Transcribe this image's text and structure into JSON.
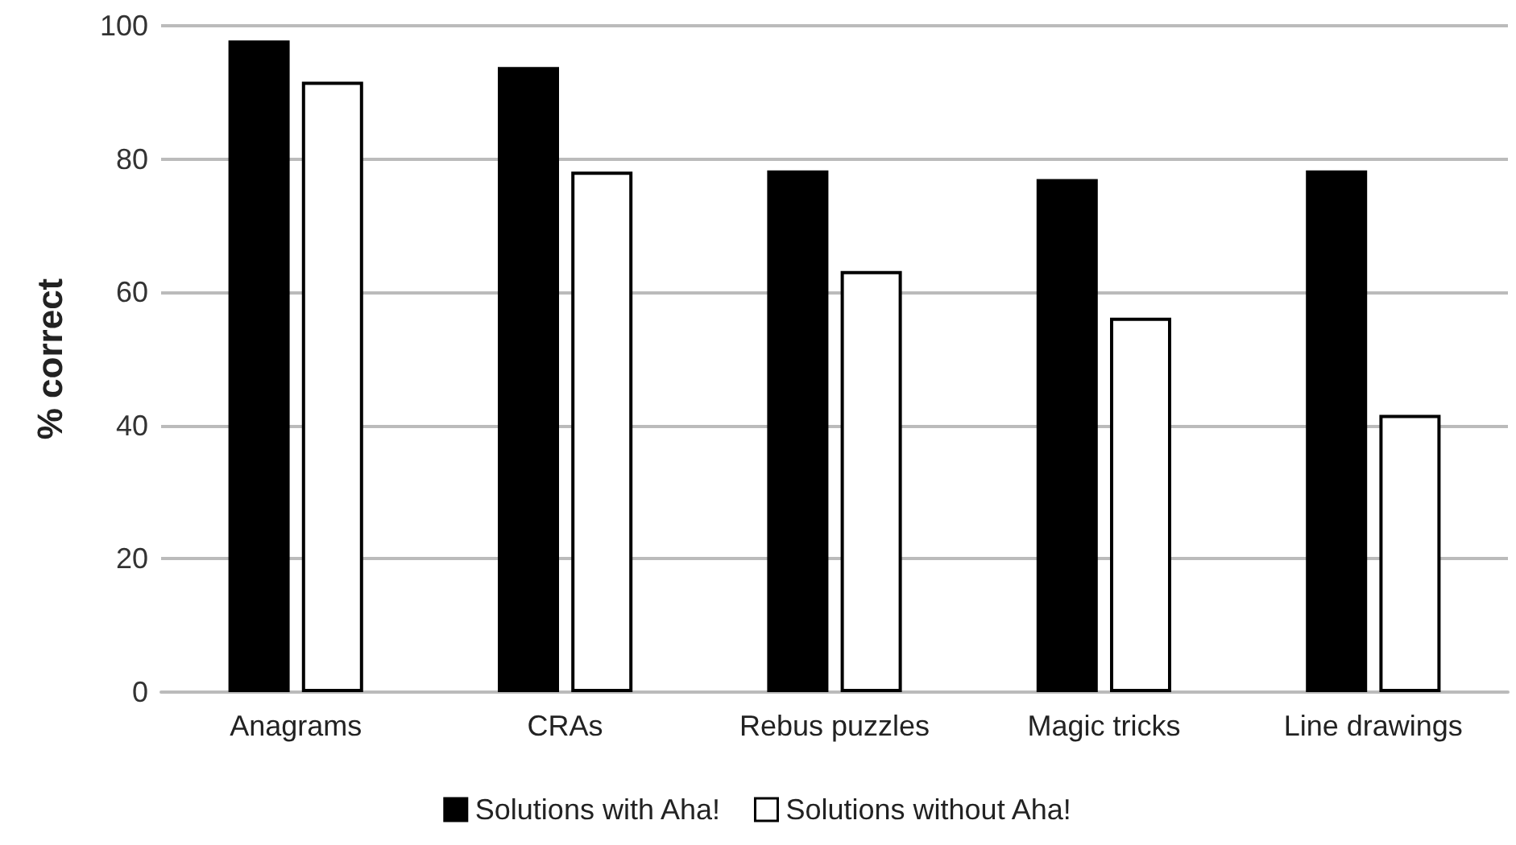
{
  "chart_data": {
    "type": "bar",
    "ylabel": "% correct",
    "categories": [
      "Anagrams",
      "CRAs",
      "Rebus puzzles",
      "Magic tricks",
      "Line drawings"
    ],
    "series": [
      {
        "name": "Solutions with Aha!",
        "color": "#000000",
        "values": [
          97.8,
          93.8,
          78.3,
          77.0,
          78.3
        ]
      },
      {
        "name": "Solutions without Aha!",
        "color": "#ffffff",
        "values": [
          91.6,
          78.1,
          63.2,
          56.2,
          41.6
        ]
      }
    ],
    "ylim": [
      0,
      100
    ],
    "yticks": [
      0,
      20,
      40,
      60,
      80,
      100
    ],
    "grid": "y",
    "legend": "bottom"
  }
}
